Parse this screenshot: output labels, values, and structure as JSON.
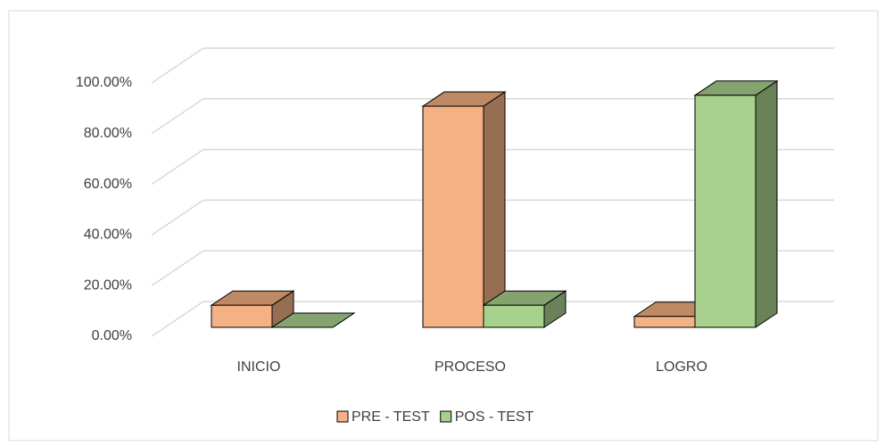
{
  "chart_data": {
    "type": "bar3d",
    "categories": [
      "INICIO",
      "PROCESO",
      "LOGRO"
    ],
    "series": [
      {
        "name": "PRE - TEST",
        "color": "#f4b183",
        "values": [
          8.7,
          87.0,
          4.3
        ]
      },
      {
        "name": "POS - TEST",
        "color": "#a9d18e",
        "values": [
          0,
          8.7,
          91.3
        ]
      }
    ],
    "ylim": [
      0,
      100
    ],
    "yticks": [
      {
        "value": 0,
        "label": "0.00%"
      },
      {
        "value": 20,
        "label": "20.00%"
      },
      {
        "value": 40,
        "label": "40.00%"
      },
      {
        "value": 60,
        "label": "60.00%"
      },
      {
        "value": 80,
        "label": "80.00%"
      },
      {
        "value": 100,
        "label": "100.00%"
      }
    ],
    "grid": true,
    "legend": "bottom"
  }
}
